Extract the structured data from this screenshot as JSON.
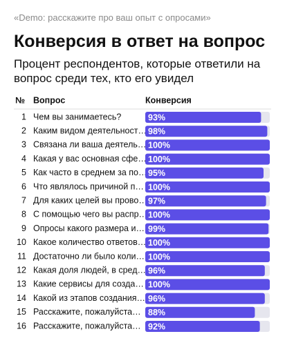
{
  "chart_data": {
    "type": "bar",
    "caption": "«Demo: расскажите про ваш опыт с опросами»",
    "title": "Конверсия в ответ на вопрос",
    "subtitle": "Процент респондентов, которые ответили на вопрос среди тех, кто его увидел",
    "columns": [
      "№",
      "Вопрос",
      "Конверсия"
    ],
    "row_numbers": [
      "1",
      "2",
      "3",
      "4",
      "5",
      "6",
      "7",
      "8",
      "9",
      "10",
      "11",
      "12",
      "13",
      "14",
      "15",
      "16"
    ],
    "categories": [
      "Чем вы занимаетесь?",
      "Каким видом деятельност…",
      "Связана ли ваша деятель…",
      "Какая у вас основная сфе…",
      "Как часто в среднем за по…",
      "Что являлось причиной п…",
      "Для каких целей вы прово…",
      "С помощью чего вы распр…",
      "Опросы какого размера и…",
      "Какое количество ответов…",
      "Достаточно ли было коли…",
      "Какая доля людей, в сред…",
      "Какие сервисы для созда…",
      "Какой из этапов создания…",
      "Расскажите, пожалуйста…",
      "Расскажите, пожалуйста…"
    ],
    "values": [
      93,
      98,
      100,
      100,
      95,
      100,
      97,
      100,
      99,
      100,
      100,
      96,
      100,
      96,
      88,
      92
    ],
    "value_labels": [
      "93%",
      "98%",
      "100%",
      "100%",
      "95%",
      "100%",
      "97%",
      "100%",
      "99%",
      "100%",
      "100%",
      "96%",
      "100%",
      "96%",
      "88%",
      "92%"
    ],
    "xlim": [
      0,
      100
    ],
    "color": "#5b4ee6",
    "track_color": "#e6e6ee"
  }
}
